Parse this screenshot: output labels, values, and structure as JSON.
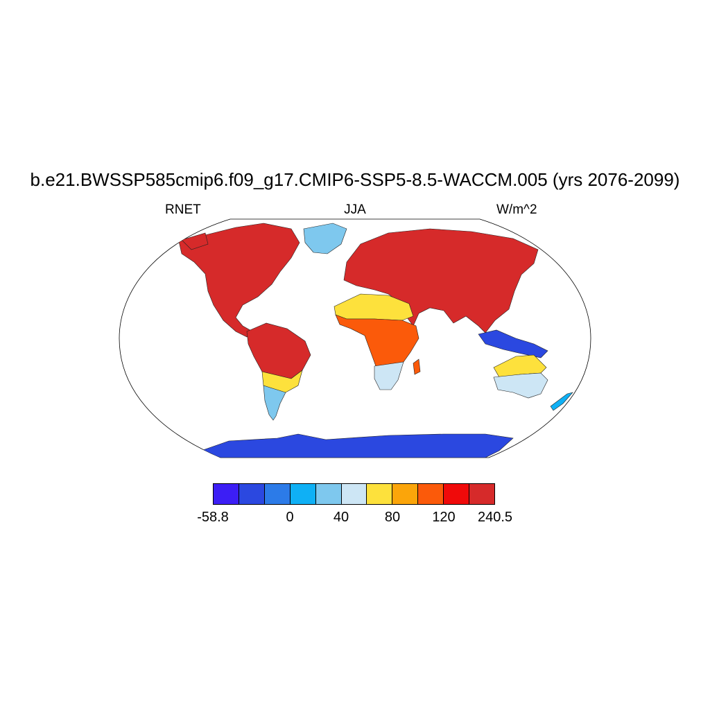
{
  "figure": {
    "title": "b.e21.BWSSP585cmip6.f09_g17.CMIP6-SSP5-8.5-WACCM.005 (yrs 2076-2099)",
    "left_label": "RNET",
    "center_label": "JJA",
    "right_label": "W/m^2",
    "projection": "robinson"
  },
  "colorbar": {
    "colors": [
      "#3c1ef5",
      "#2b48e0",
      "#2c7be8",
      "#0fb0f5",
      "#7ec8ee",
      "#cde6f5",
      "#fde13c",
      "#fba50a",
      "#fb5a0a",
      "#f00a0a",
      "#d62a2a"
    ],
    "tick_labels": [
      {
        "text": "-58.8",
        "edge": 0
      },
      {
        "text": "0",
        "edge": 3
      },
      {
        "text": "40",
        "edge": 5
      },
      {
        "text": "80",
        "edge": 7
      },
      {
        "text": "120",
        "edge": 9
      },
      {
        "text": "240.5",
        "edge": 11
      }
    ]
  },
  "regions": [
    {
      "name": "north-america",
      "color": "#d62a2a"
    },
    {
      "name": "greenland",
      "color": "#7ec8ee"
    },
    {
      "name": "south-america-north",
      "color": "#d62a2a"
    },
    {
      "name": "south-america-south",
      "color": "#7ec8ee"
    },
    {
      "name": "europe-asia",
      "color": "#d62a2a"
    },
    {
      "name": "sahara",
      "color": "#fde13c"
    },
    {
      "name": "africa-central",
      "color": "#fb5a0a"
    },
    {
      "name": "africa-south",
      "color": "#cde6f5"
    },
    {
      "name": "australia",
      "color": "#cde6f5"
    },
    {
      "name": "antarctica",
      "color": "#2b48e0"
    },
    {
      "name": "new-zealand",
      "color": "#0fb0f5"
    }
  ]
}
